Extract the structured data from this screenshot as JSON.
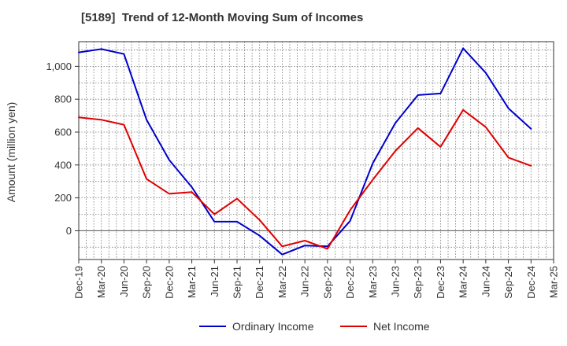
{
  "title": "[5189]  Trend of 12-Month Moving Sum of Incomes",
  "chart_data": {
    "type": "line",
    "title": "[5189]  Trend of 12-Month Moving Sum of Incomes",
    "xlabel": "",
    "ylabel": "Amount (million yen)",
    "x_tick_labels": [
      "Dec-19",
      "Mar-20",
      "Jun-20",
      "Sep-20",
      "Dec-20",
      "Mar-21",
      "Jun-21",
      "Sep-21",
      "Dec-21",
      "Mar-22",
      "Jun-22",
      "Sep-22",
      "Dec-22",
      "Mar-23",
      "Jun-23",
      "Sep-23",
      "Dec-23",
      "Mar-24",
      "Jun-24",
      "Sep-24",
      "Dec-24",
      "Mar-25"
    ],
    "y_ticks": [
      0,
      200,
      400,
      600,
      800,
      1000
    ],
    "y_tick_labels": [
      "0",
      "200",
      "400",
      "600",
      "800",
      "1,000"
    ],
    "ylim": [
      -175,
      1150
    ],
    "grid": true,
    "legend_position": "bottom",
    "series": [
      {
        "name": "Ordinary Income",
        "color": "#0000cc",
        "values": [
          1085,
          1105,
          1075,
          675,
          430,
          265,
          55,
          55,
          -30,
          -145,
          -90,
          -95,
          60,
          410,
          655,
          825,
          835,
          1110,
          960,
          745,
          620
        ]
      },
      {
        "name": "Net Income",
        "color": "#e00000",
        "values": [
          690,
          675,
          645,
          315,
          225,
          235,
          100,
          195,
          65,
          -95,
          -60,
          -110,
          125,
          310,
          485,
          625,
          510,
          735,
          630,
          445,
          395
        ]
      }
    ]
  }
}
